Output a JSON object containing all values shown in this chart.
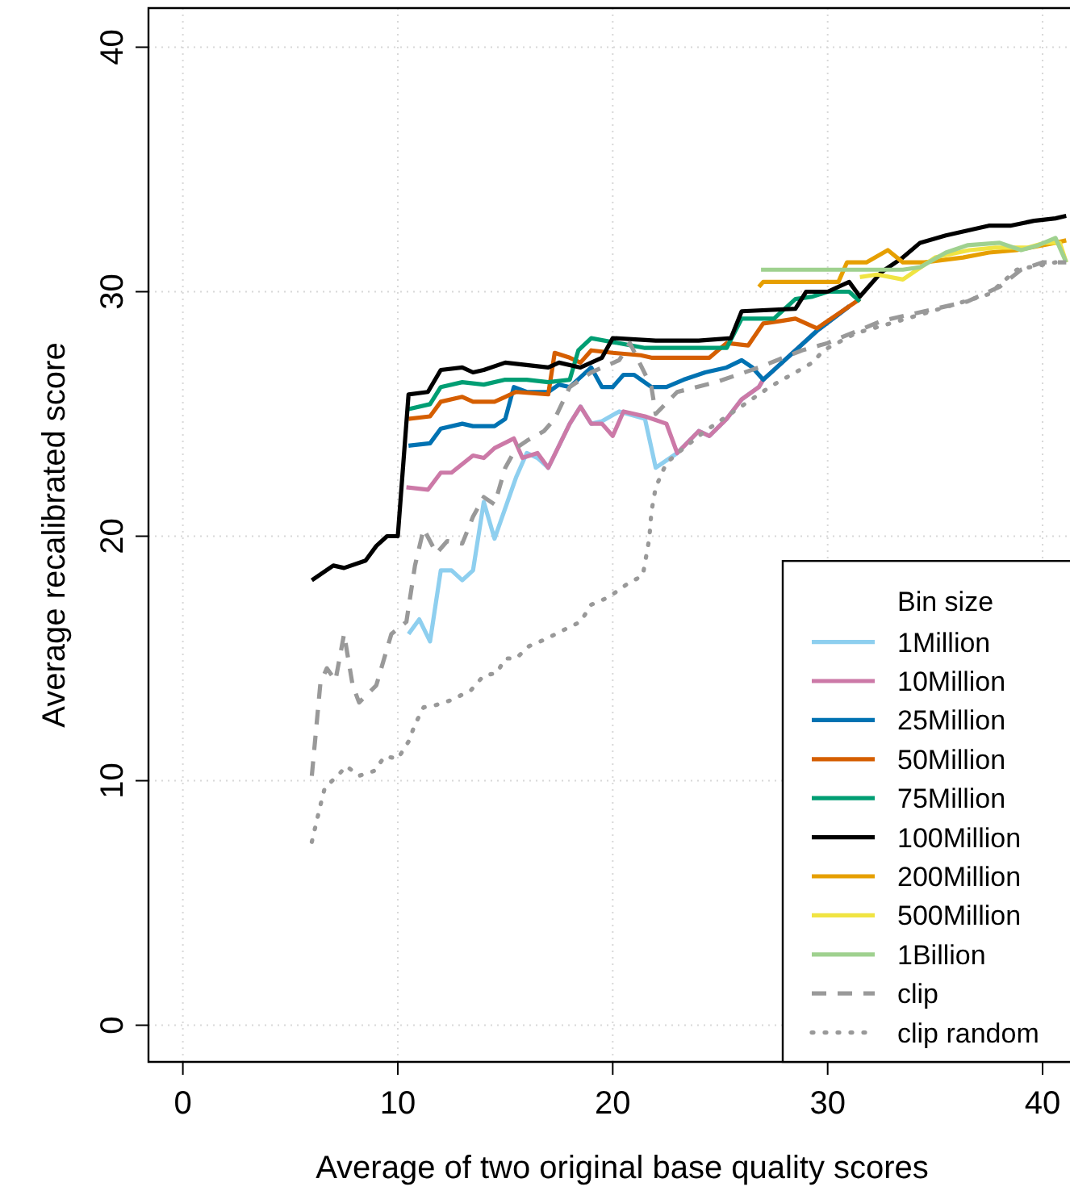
{
  "chart_data": {
    "type": "line",
    "xlabel": "Average of two original base quality scores",
    "ylabel": "Average recalibrated score",
    "legend_title": "Bin size",
    "legend": "bottom right",
    "grid": true,
    "xlim": [
      -1.6,
      41.2
    ],
    "ylim": [
      -1.5,
      41.6
    ],
    "xticks": [
      0,
      10,
      20,
      30,
      40
    ],
    "yticks": [
      0,
      10,
      20,
      30,
      40
    ],
    "line_style": "solid",
    "marker": "none",
    "series": [
      {
        "name": "1Million",
        "color": "#8ecfef",
        "x": [
          10.5,
          11,
          11.5,
          12,
          12.5,
          13,
          13.5,
          14,
          14.5,
          15.5,
          16,
          16.5,
          17,
          18,
          18.5,
          19,
          19.5,
          20.3,
          21.5,
          22,
          23,
          24,
          24.5,
          25.3,
          26,
          26.8,
          27,
          28,
          29.5,
          31
        ],
        "values": [
          16.0,
          16.6,
          15.7,
          18.6,
          18.6,
          18.2,
          18.6,
          21.4,
          19.9,
          22.4,
          23.4,
          23.2,
          22.8,
          24.6,
          25.3,
          24.6,
          24.7,
          25.1,
          24.8,
          22.8,
          23.4,
          24.3,
          24.1,
          24.8,
          25.6,
          26.1,
          26.4,
          27.2,
          28.4,
          29.4
        ]
      },
      {
        "name": "10Million",
        "color": "#cc79a7",
        "x": [
          10.4,
          11.4,
          12,
          12.5,
          13.5,
          14,
          14.5,
          15.4,
          15.8,
          16.5,
          17,
          18,
          18.5,
          19,
          19.5,
          20,
          20.5,
          21.5,
          22.5,
          23,
          24,
          24.5,
          25.3,
          26,
          26.8,
          27,
          28,
          29.5,
          31
        ],
        "values": [
          22.0,
          21.9,
          22.6,
          22.6,
          23.3,
          23.2,
          23.6,
          24.0,
          23.2,
          23.4,
          22.8,
          24.6,
          25.3,
          24.6,
          24.6,
          24.1,
          25.1,
          24.9,
          24.6,
          23.4,
          24.3,
          24.1,
          24.8,
          25.6,
          26.1,
          26.4,
          27.2,
          28.4,
          29.4
        ]
      },
      {
        "name": "25Million",
        "color": "#0072b2",
        "x": [
          10.5,
          11.5,
          12,
          13,
          13.5,
          14.5,
          15,
          15.4,
          16,
          17,
          17.5,
          18,
          19,
          19.5,
          20,
          20.5,
          21,
          21.8,
          22.5,
          23.3,
          24.3,
          25.3,
          26,
          26.5,
          27,
          28,
          29.5,
          31
        ],
        "values": [
          23.7,
          23.8,
          24.4,
          24.6,
          24.5,
          24.5,
          24.8,
          26.1,
          25.9,
          25.9,
          26.2,
          26.1,
          26.9,
          26.1,
          26.1,
          26.6,
          26.6,
          26.1,
          26.1,
          26.4,
          26.7,
          26.9,
          27.2,
          26.9,
          26.4,
          27.2,
          28.4,
          29.4
        ]
      },
      {
        "name": "50Million",
        "color": "#d55e00",
        "x": [
          10.5,
          11.5,
          12,
          13,
          13.5,
          14.5,
          15,
          15.5,
          17,
          17.3,
          18,
          18.5,
          19,
          20,
          21.3,
          21.8,
          24.5,
          25.3,
          26.3,
          27,
          27.8,
          28.5,
          29.5,
          31.5
        ],
        "values": [
          24.8,
          24.9,
          25.5,
          25.7,
          25.5,
          25.5,
          25.7,
          25.9,
          25.8,
          27.5,
          27.3,
          27.1,
          27.6,
          27.5,
          27.4,
          27.3,
          27.3,
          27.9,
          27.8,
          28.7,
          28.8,
          28.9,
          28.5,
          29.7
        ]
      },
      {
        "name": "75Million",
        "color": "#009e73",
        "x": [
          10.5,
          11.5,
          12,
          13,
          14,
          15,
          16,
          17,
          18,
          18.4,
          19,
          21.5,
          24.3,
          25.3,
          26,
          27.5,
          28.5,
          29.3,
          30,
          31,
          31.5
        ],
        "values": [
          25.2,
          25.4,
          26.1,
          26.3,
          26.2,
          26.4,
          26.4,
          26.3,
          26.4,
          27.6,
          28.1,
          27.7,
          27.7,
          27.7,
          28.9,
          28.9,
          29.7,
          29.8,
          30.0,
          30.0,
          29.6
        ]
      },
      {
        "name": "100Million",
        "color": "#000000",
        "x": [
          6,
          7,
          7.5,
          8.5,
          9,
          9.5,
          10,
          10.5,
          11.4,
          12,
          13,
          13.5,
          14,
          15,
          16,
          17,
          17.5,
          18.5,
          19.5,
          20,
          22,
          24,
          25.5,
          26,
          28.5,
          29,
          30,
          31,
          31.5,
          32.5,
          33.5,
          34.3,
          35.5,
          36.5,
          37.5,
          38.5,
          39.6,
          40.6,
          41.1
        ],
        "values": [
          18.2,
          18.8,
          18.7,
          19.0,
          19.6,
          20.0,
          20.0,
          25.8,
          25.9,
          26.8,
          26.9,
          26.7,
          26.8,
          27.1,
          27.0,
          26.9,
          27.1,
          26.9,
          27.3,
          28.1,
          28.0,
          28.0,
          28.1,
          29.2,
          29.3,
          30.0,
          30.0,
          30.4,
          29.8,
          30.8,
          31.4,
          32.0,
          32.3,
          32.5,
          32.7,
          32.7,
          32.9,
          33.0,
          33.1
        ]
      },
      {
        "name": "200Million",
        "color": "#e69f00",
        "x": [
          26.8,
          27,
          30.5,
          30.9,
          31.8,
          32.8,
          33.5,
          34.5,
          36.3,
          37.5,
          38.8,
          40.6,
          41.1
        ],
        "values": [
          30.2,
          30.4,
          30.4,
          31.2,
          31.2,
          31.7,
          31.2,
          31.2,
          31.4,
          31.6,
          31.7,
          32.0,
          32.1
        ]
      },
      {
        "name": "500Million",
        "color": "#f0e442",
        "x": [
          31.5,
          32.3,
          33.5,
          35,
          36.6,
          37.8,
          39.3,
          40.1,
          40.8,
          41.1
        ],
        "values": [
          30.6,
          30.7,
          30.5,
          31.4,
          31.7,
          31.8,
          31.8,
          32.0,
          32.0,
          31.2
        ]
      },
      {
        "name": "1Billion",
        "color": "#9fd18f",
        "x": [
          26.9,
          30.5,
          32.5,
          33.5,
          34.3,
          35.5,
          36.5,
          38,
          39,
          39.8,
          40.6,
          41.1
        ],
        "values": [
          30.9,
          30.9,
          30.9,
          30.9,
          31.0,
          31.6,
          31.9,
          32.0,
          31.7,
          31.9,
          32.2,
          31.2
        ]
      },
      {
        "name": "clip",
        "color": "#999999",
        "line_style": "dashed",
        "x": [
          6,
          6.4,
          6.7,
          7.1,
          7.5,
          7.9,
          8.2,
          9,
          9.7,
          10.4,
          10.8,
          11.2,
          11.8,
          12.3,
          13,
          13.5,
          14,
          14.5,
          15,
          15.5,
          16,
          16.8,
          17.3,
          18,
          19,
          20.3,
          20.8,
          21.8,
          22,
          23,
          24.8,
          26.8,
          28.8,
          30,
          32.5,
          34.5,
          36.5,
          38,
          39,
          40,
          41.1
        ],
        "values": [
          10.2,
          14.0,
          14.6,
          14.1,
          16.0,
          13.9,
          13.2,
          13.9,
          16.0,
          16.5,
          18.8,
          20.3,
          19.3,
          19.8,
          19.7,
          20.8,
          21.6,
          21.3,
          22.8,
          23.6,
          23.9,
          24.3,
          24.8,
          26.1,
          26.7,
          27.2,
          27.9,
          26.1,
          25.0,
          25.9,
          26.3,
          26.9,
          27.6,
          27.9,
          28.8,
          29.2,
          29.6,
          30.2,
          30.9,
          31.2,
          31.2
        ]
      },
      {
        "name": "clip random",
        "color": "#999999",
        "line_style": "dotted",
        "x": [
          6,
          6.4,
          6.6,
          7.3,
          7.6,
          8.2,
          8.9,
          9.4,
          10,
          10.5,
          10.8,
          11.2,
          11.8,
          12.5,
          13.4,
          14,
          14.6,
          15,
          15.5,
          16.1,
          16.9,
          17.8,
          18.5,
          19,
          19.8,
          20.6,
          21.4,
          21.7,
          21.8,
          22,
          22.5,
          23.3,
          24.3,
          25.8,
          27.3,
          29.3,
          29.8,
          31.3,
          33.3,
          35.6,
          37.5,
          38.8,
          40.6
        ],
        "values": [
          7.5,
          9.0,
          9.7,
          10.3,
          10.6,
          10.2,
          10.4,
          11.0,
          10.9,
          11.6,
          12.3,
          13.0,
          13.1,
          13.3,
          13.7,
          14.3,
          14.4,
          15.0,
          15.0,
          15.5,
          15.8,
          16.2,
          16.5,
          17.2,
          17.5,
          18.0,
          18.4,
          19.9,
          21.0,
          22.0,
          23.0,
          23.6,
          24.3,
          25.2,
          26.1,
          27.1,
          27.6,
          28.3,
          28.8,
          29.4,
          29.9,
          30.9,
          31.2
        ]
      }
    ]
  }
}
